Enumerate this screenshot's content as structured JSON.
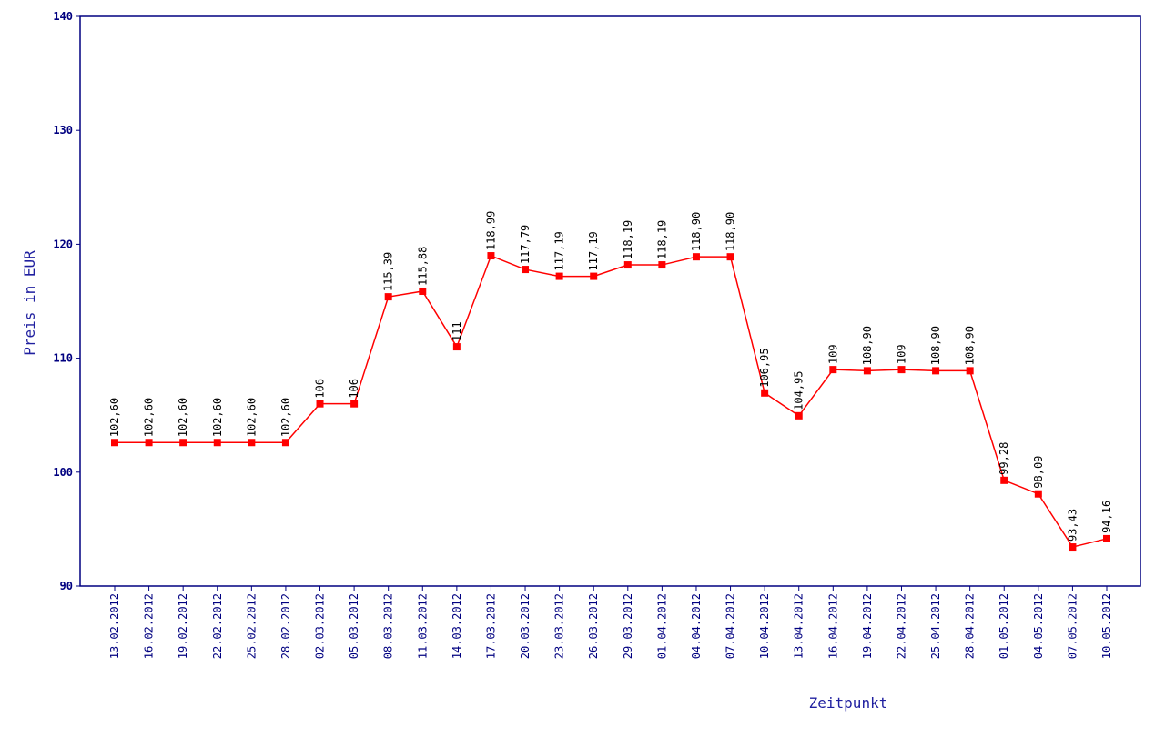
{
  "chart_data": {
    "type": "line",
    "y_label": "Preis in EUR",
    "x_label": "Zeitpunkt",
    "categories": [
      "13.02.2012",
      "16.02.2012",
      "19.02.2012",
      "22.02.2012",
      "25.02.2012",
      "28.02.2012",
      "02.03.2012",
      "05.03.2012",
      "08.03.2012",
      "11.03.2012",
      "14.03.2012",
      "17.03.2012",
      "20.03.2012",
      "23.03.2012",
      "26.03.2012",
      "29.03.2012",
      "01.04.2012",
      "04.04.2012",
      "07.04.2012",
      "10.04.2012",
      "13.04.2012",
      "16.04.2012",
      "19.04.2012",
      "22.04.2012",
      "25.04.2012",
      "28.04.2012",
      "01.05.2012",
      "04.05.2012",
      "07.05.2012",
      "10.05.2012"
    ],
    "values": [
      102.6,
      102.6,
      102.6,
      102.6,
      102.6,
      102.6,
      106,
      106,
      115.39,
      115.88,
      111,
      118.99,
      117.79,
      117.19,
      117.19,
      118.19,
      118.19,
      118.9,
      118.9,
      106.95,
      104.95,
      109,
      108.9,
      109,
      108.9,
      108.9,
      99.28,
      98.09,
      93.43,
      94.16
    ],
    "value_labels": [
      "102,60",
      "102,60",
      "102,60",
      "102,60",
      "102,60",
      "102,60",
      "106",
      "106",
      "115,39",
      "115,88",
      "111",
      "118,99",
      "117,79",
      "117,19",
      "117,19",
      "118,19",
      "118,19",
      "118,90",
      "118,90",
      "106,95",
      "104,95",
      "109",
      "108,90",
      "109",
      "108,90",
      "108,90",
      "99,28",
      "98,09",
      "93,43",
      "94,16"
    ],
    "color": "#ff0000",
    "ylim": [
      90,
      140
    ],
    "yticks": [
      90,
      100,
      110,
      120,
      130,
      140
    ]
  }
}
